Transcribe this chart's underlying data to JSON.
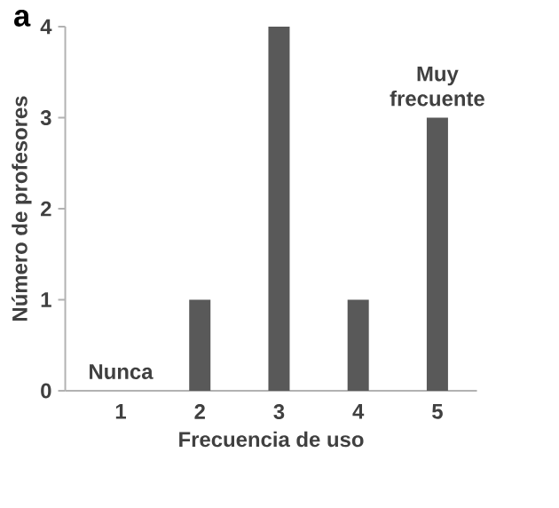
{
  "chart_data": {
    "type": "bar",
    "categories": [
      "1",
      "2",
      "3",
      "4",
      "5"
    ],
    "values": [
      0,
      1,
      4,
      1,
      3
    ],
    "color": "#595959",
    "xlabel": "Frecuencia de uso",
    "ylabel": "Número de profesores",
    "ylim": [
      0,
      4
    ],
    "yticks": [
      0,
      1,
      2,
      3,
      4
    ],
    "annotations": [
      "a",
      {
        "text": "Nunca",
        "x": "1",
        "y": 0
      },
      {
        "text": "Muy frecuente",
        "x": "5",
        "y": 3
      }
    ]
  }
}
